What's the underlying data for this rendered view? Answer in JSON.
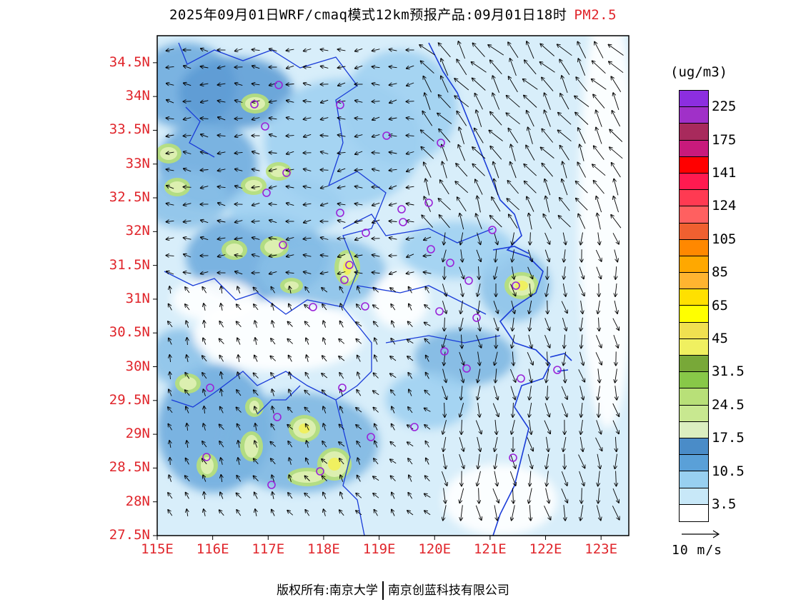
{
  "header": {
    "title": "2025年09月01日WRF/cmaq模式12km预报产品:09月01日18时",
    "variable": "PM2.5"
  },
  "map": {
    "lat_labels": [
      "34.5N",
      "34N",
      "33.5N",
      "33N",
      "32.5N",
      "32N",
      "31.5N",
      "31N",
      "30.5N",
      "30N",
      "29.5N",
      "29N",
      "28.5N",
      "28N",
      "27.5N"
    ],
    "lon_labels": [
      "115E",
      "116E",
      "117E",
      "118E",
      "119E",
      "120E",
      "121E",
      "122E",
      "123E"
    ],
    "label_color": "#e0252b",
    "lon_range": [
      115,
      123.5
    ],
    "lat_range": [
      27.5,
      34.9
    ]
  },
  "legend": {
    "unit": "(ug/m3)",
    "colors": [
      "#8c2ee0",
      "#a030c8",
      "#a82a5c",
      "#c81a7c",
      "#ff0000",
      "#ff1a50",
      "#ff3a52",
      "#ff6060",
      "#f06030",
      "#ff8800",
      "#ffa800",
      "#ffb430",
      "#ffe000",
      "#ffff00",
      "#f0e050",
      "#f0f060",
      "#78a838",
      "#88c848",
      "#b8e078",
      "#c8e890",
      "#dcefc0",
      "#4a8cc8",
      "#5aa0d8",
      "#98d0f0",
      "#c8e8f8",
      "#ffffff"
    ],
    "labels": [
      "225",
      "175",
      "141",
      "124",
      "105",
      "85",
      "65",
      "45",
      "31.5",
      "24.5",
      "17.5",
      "10.5",
      "3.5"
    ]
  },
  "wind_reference": {
    "label": "10 m/s"
  },
  "footer": {
    "copyright": "版权所有:南京大学",
    "company": "南京创蓝科技有限公司"
  }
}
